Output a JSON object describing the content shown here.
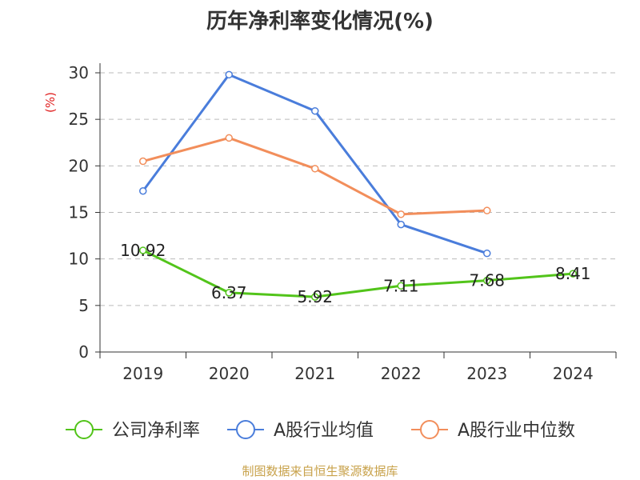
{
  "chart_data": {
    "type": "line",
    "title": "历年净利率变化情况(%)",
    "ylabel": "(%)",
    "xlabel": "",
    "categories": [
      "2019",
      "2020",
      "2021",
      "2022",
      "2023",
      "2024"
    ],
    "ylim": [
      0,
      30
    ],
    "yticks": [
      0,
      5,
      10,
      15,
      20,
      25,
      30
    ],
    "grid": true,
    "legend_position": "bottom",
    "series": [
      {
        "name": "公司净利率",
        "color": "#52c41a",
        "values": [
          10.92,
          6.37,
          5.92,
          7.11,
          7.68,
          8.41
        ],
        "labels": [
          "10.92",
          "6.37",
          "5.92",
          "7.11",
          "7.68",
          "8.41"
        ]
      },
      {
        "name": "A股行业均值",
        "color": "#4a7ddb",
        "values": [
          17.3,
          29.8,
          25.9,
          13.7,
          10.6,
          null
        ]
      },
      {
        "name": "A股行业中位数",
        "color": "#f28e5b",
        "values": [
          20.5,
          23.0,
          19.7,
          14.8,
          15.2,
          null
        ]
      }
    ]
  },
  "footer": "制图数据来自恒生聚源数据库"
}
